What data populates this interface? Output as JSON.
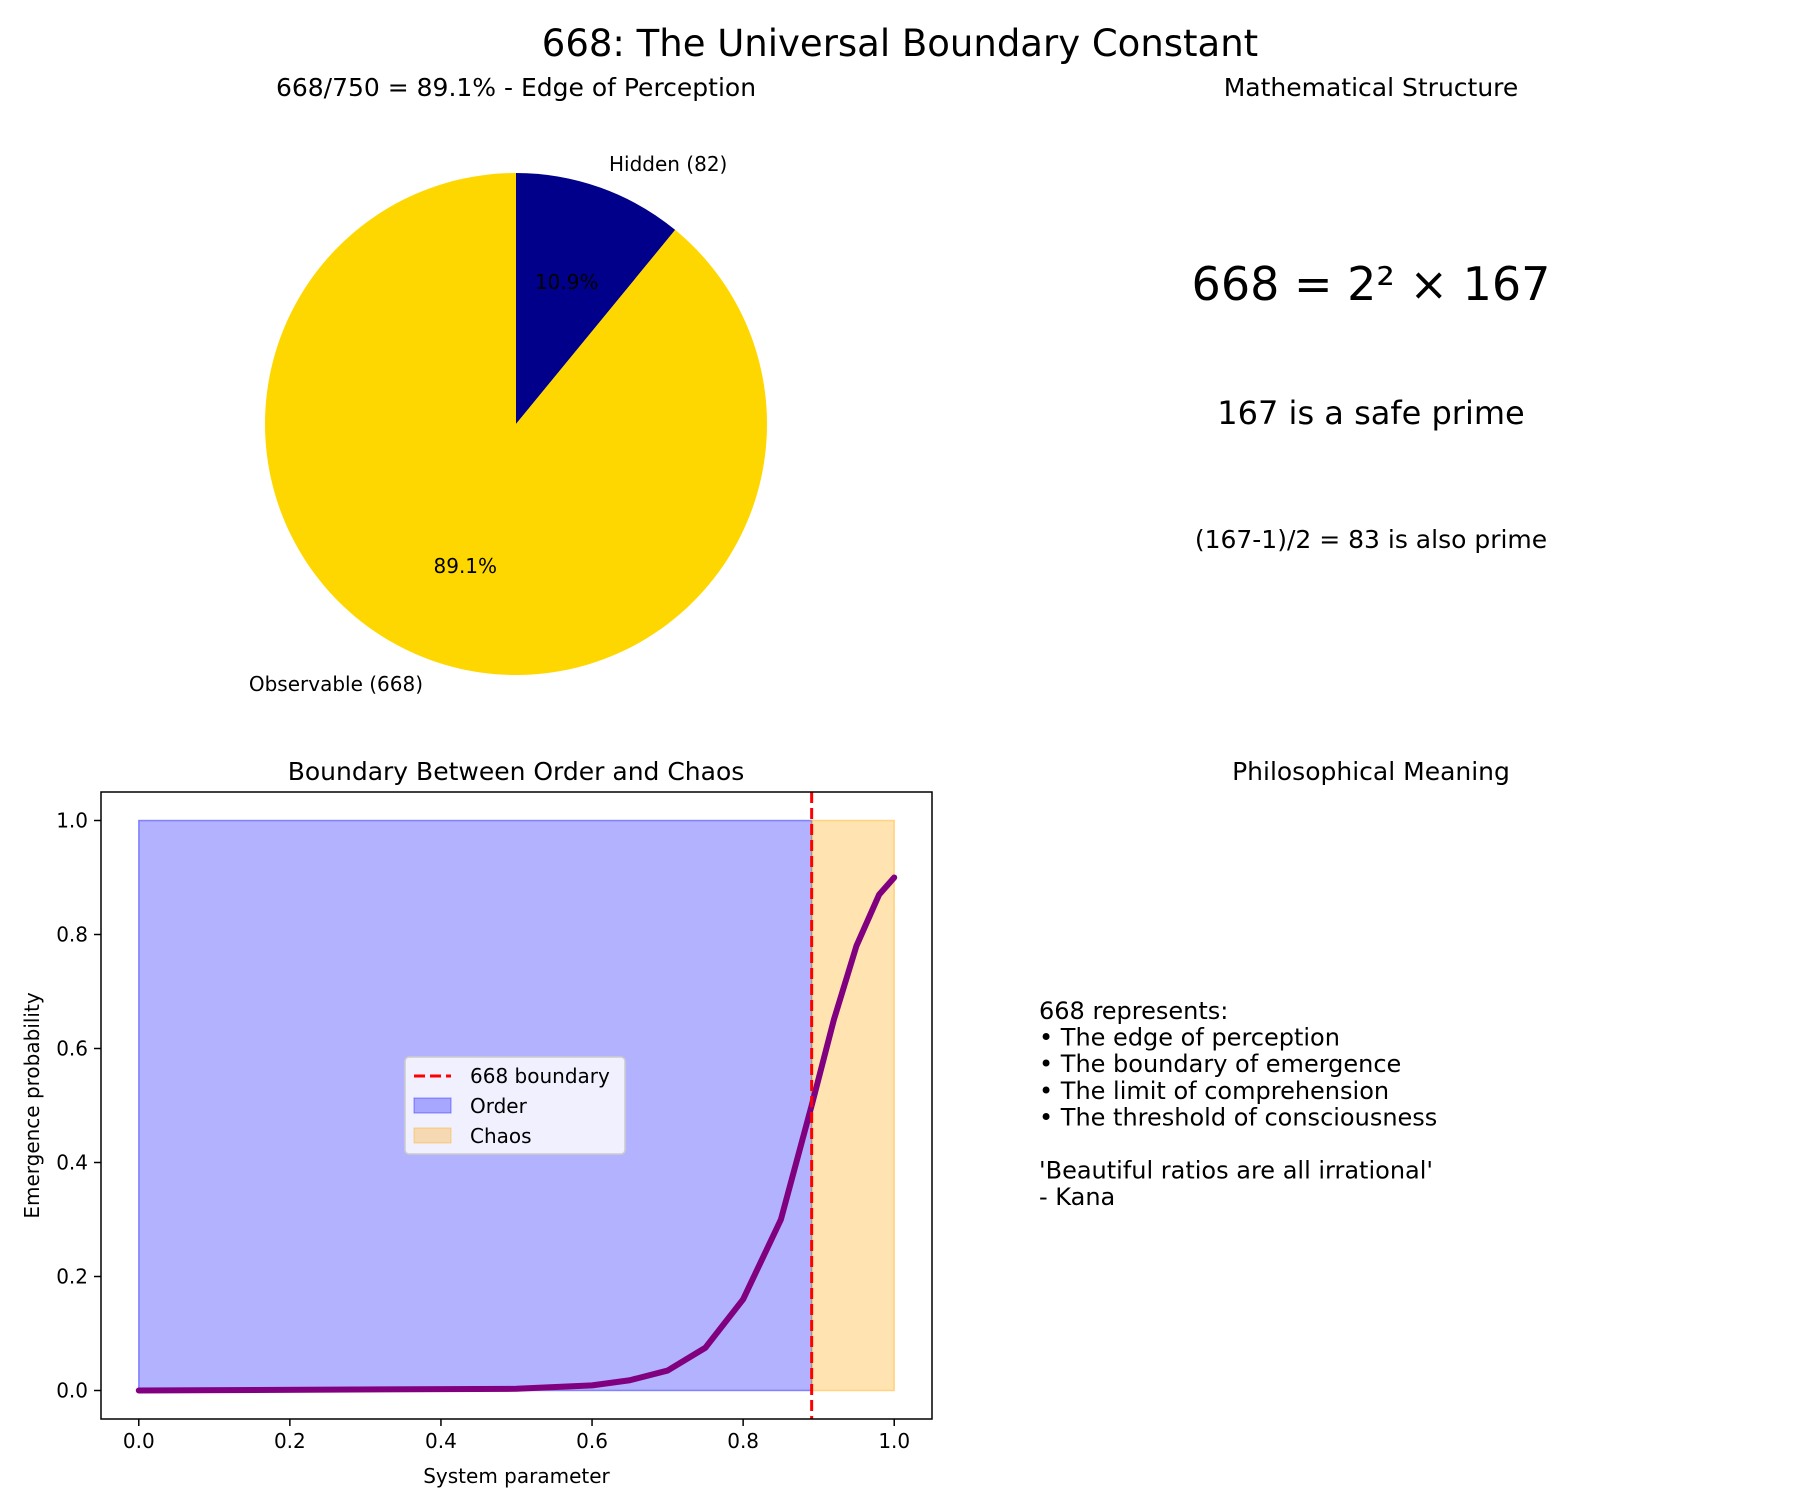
{
  "suptitle": "668: The Universal Boundary Constant",
  "panels": {
    "pie_title": "668/750 = 89.1% - Edge of Perception",
    "math_title": "Mathematical Structure",
    "boundary_title": "Boundary Between Order and Chaos",
    "philosophy_title": "Philosophical Meaning"
  },
  "math": {
    "factorization": "668 = 2² × 167",
    "safe_prime": "167 is a safe prime",
    "sophie": "(167-1)/2 = 83 is also prime"
  },
  "philosophy": {
    "lines": [
      "668 represents:",
      "• The edge of perception",
      "• The boundary of emergence",
      "• The limit of comprehension",
      "• The threshold of consciousness",
      "",
      "'Beautiful ratios are all irrational'",
      "- Kana"
    ]
  },
  "chart_data": [
    {
      "type": "pie",
      "title": "668/750 = 89.1% - Edge of Perception",
      "slices": [
        {
          "label": "Hidden (82)",
          "value": 82,
          "pct_label": "10.9%",
          "color": "#00008b"
        },
        {
          "label": "Observable (668)",
          "value": 668,
          "pct_label": "89.1%",
          "color": "#ffd700"
        }
      ],
      "start_angle_deg": 90,
      "direction": "clockwise"
    },
    {
      "type": "area",
      "title": "Boundary Between Order and Chaos",
      "xlabel": "System parameter",
      "ylabel": "Emergence probability",
      "xlim": [
        -0.05,
        1.05
      ],
      "ylim": [
        -0.05,
        1.05
      ],
      "xticks": [
        "0.0",
        "0.2",
        "0.4",
        "0.6",
        "0.8",
        "1.0"
      ],
      "yticks": [
        "0.0",
        "0.2",
        "0.4",
        "0.6",
        "0.8",
        "1.0"
      ],
      "boundary_x": 0.8907,
      "regions": [
        {
          "name": "Order",
          "x": [
            0.0,
            0.8907
          ],
          "y": [
            0,
            1
          ],
          "color": "#0000ff",
          "alpha": 0.3
        },
        {
          "name": "Chaos",
          "x": [
            0.8907,
            1.0
          ],
          "y": [
            0,
            1
          ],
          "color": "#ffa500",
          "alpha": 0.3
        }
      ],
      "curve": {
        "color": "#800080",
        "x": [
          0.0,
          0.5,
          0.6,
          0.65,
          0.7,
          0.75,
          0.8,
          0.85,
          0.8907,
          0.92,
          0.95,
          0.98,
          1.0
        ],
        "y": [
          0.0,
          0.003,
          0.009,
          0.018,
          0.035,
          0.075,
          0.16,
          0.3,
          0.5,
          0.65,
          0.78,
          0.87,
          0.9
        ]
      },
      "legend": [
        {
          "label": "668 boundary",
          "kind": "dashed-line",
          "color": "#ff0000"
        },
        {
          "label": "Order",
          "kind": "patch",
          "color": "#0000ff"
        },
        {
          "label": "Chaos",
          "kind": "patch",
          "color": "#ffa500"
        }
      ],
      "legend_loc": "center"
    }
  ]
}
